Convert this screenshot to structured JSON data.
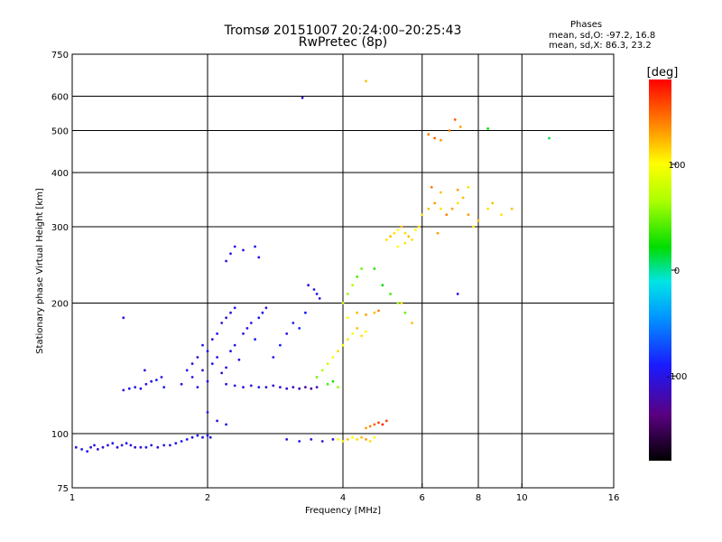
{
  "header": {
    "title": "Tromsø 20151007 20:24:00–20:25:43",
    "subtitle": "RwPretec (8p)"
  },
  "phase_info": {
    "heading": "Phases",
    "line_o": "mean, sd,O:  -97.2, 16.8",
    "line_x": "mean, sd,X:  86.3, 23.2"
  },
  "colors": {
    "axes": "#000000",
    "grid": "#000000",
    "background": "#ffffff"
  },
  "chart_data": {
    "type": "scatter",
    "xlabel": "Frequency [MHz]",
    "ylabel": "Stationary phase Virtual Height [km]",
    "xscale": "log",
    "yscale": "log",
    "xlim": [
      1,
      16
    ],
    "ylim": [
      75,
      750
    ],
    "xticks": [
      1,
      2,
      4,
      6,
      8,
      10,
      16
    ],
    "xgrid": [
      2,
      4,
      6,
      8,
      10
    ],
    "yticks": [
      75,
      100,
      200,
      300,
      400,
      500,
      600,
      750
    ],
    "ygrid": [
      100,
      200,
      300,
      400,
      500,
      600
    ],
    "grid": true,
    "colorbar": {
      "label": "[deg]",
      "range": [
        -180,
        180
      ],
      "ticks": [
        100,
        0,
        -100
      ]
    },
    "series": [
      {
        "value_kind": "phase_deg",
        "points": [
          [
            1.02,
            93,
            -100
          ],
          [
            1.05,
            92,
            -95
          ],
          [
            1.08,
            91,
            -90
          ],
          [
            1.1,
            93,
            -105
          ],
          [
            1.12,
            94,
            -95
          ],
          [
            1.14,
            92,
            -100
          ],
          [
            1.17,
            93,
            -110
          ],
          [
            1.2,
            94,
            -100
          ],
          [
            1.23,
            95,
            -95
          ],
          [
            1.26,
            93,
            -100
          ],
          [
            1.29,
            94,
            -105
          ],
          [
            1.32,
            95,
            -95
          ],
          [
            1.35,
            94,
            -100
          ],
          [
            1.38,
            93,
            -110
          ],
          [
            1.42,
            93,
            -100
          ],
          [
            1.46,
            93,
            -95
          ],
          [
            1.5,
            94,
            -100
          ],
          [
            1.55,
            93,
            -105
          ],
          [
            1.6,
            94,
            -95
          ],
          [
            1.65,
            94,
            -100
          ],
          [
            1.7,
            95,
            -100
          ],
          [
            1.75,
            96,
            -90
          ],
          [
            1.8,
            97,
            -95
          ],
          [
            1.85,
            98,
            -100
          ],
          [
            1.9,
            99,
            -95
          ],
          [
            1.95,
            98,
            -100
          ],
          [
            2.0,
            99,
            -90
          ],
          [
            2.03,
            98,
            -100
          ],
          [
            1.3,
            126,
            -100
          ],
          [
            1.34,
            127,
            -95
          ],
          [
            1.38,
            128,
            -100
          ],
          [
            1.42,
            127,
            -105
          ],
          [
            1.46,
            130,
            -95
          ],
          [
            1.5,
            132,
            -100
          ],
          [
            1.54,
            133,
            -90
          ],
          [
            1.58,
            135,
            -100
          ],
          [
            1.75,
            130,
            -100
          ],
          [
            1.8,
            140,
            -95
          ],
          [
            1.85,
            145,
            -100
          ],
          [
            1.9,
            150,
            -110
          ],
          [
            1.95,
            160,
            -100
          ],
          [
            2.0,
            155,
            -95
          ],
          [
            2.05,
            165,
            -100
          ],
          [
            2.1,
            170,
            -95
          ],
          [
            2.15,
            180,
            -100
          ],
          [
            2.2,
            185,
            -110
          ],
          [
            2.25,
            190,
            -100
          ],
          [
            2.3,
            195,
            -95
          ],
          [
            1.85,
            135,
            -100
          ],
          [
            1.9,
            128,
            -95
          ],
          [
            1.95,
            140,
            -105
          ],
          [
            2.0,
            132,
            -100
          ],
          [
            2.05,
            145,
            -95
          ],
          [
            2.1,
            150,
            -100
          ],
          [
            2.15,
            138,
            -110
          ],
          [
            2.2,
            142,
            -100
          ],
          [
            2.25,
            155,
            -95
          ],
          [
            2.3,
            160,
            -100
          ],
          [
            2.35,
            148,
            -100
          ],
          [
            2.4,
            170,
            -105
          ],
          [
            2.45,
            175,
            -95
          ],
          [
            2.5,
            180,
            -100
          ],
          [
            2.55,
            165,
            -90
          ],
          [
            2.6,
            185,
            -100
          ],
          [
            2.65,
            190,
            -95
          ],
          [
            2.7,
            195,
            -100
          ],
          [
            2.2,
            130,
            -100
          ],
          [
            2.3,
            129,
            -95
          ],
          [
            2.4,
            128,
            -100
          ],
          [
            2.5,
            129,
            -105
          ],
          [
            2.6,
            128,
            -95
          ],
          [
            2.7,
            128,
            -100
          ],
          [
            2.8,
            129,
            -110
          ],
          [
            2.9,
            128,
            -100
          ],
          [
            3.0,
            127,
            -105
          ],
          [
            3.1,
            128,
            -115
          ],
          [
            3.2,
            127,
            -120
          ],
          [
            3.3,
            128,
            -125
          ],
          [
            3.4,
            127,
            -130
          ],
          [
            3.5,
            128,
            -120
          ],
          [
            2.2,
            250,
            -100
          ],
          [
            2.25,
            260,
            -95
          ],
          [
            2.3,
            270,
            -100
          ],
          [
            2.4,
            265,
            -100
          ],
          [
            2.55,
            270,
            -95
          ],
          [
            2.6,
            255,
            -100
          ],
          [
            2.8,
            150,
            -95
          ],
          [
            2.9,
            160,
            -90
          ],
          [
            3.0,
            170,
            -100
          ],
          [
            3.1,
            180,
            -90
          ],
          [
            3.2,
            175,
            -85
          ],
          [
            3.3,
            190,
            -90
          ],
          [
            3.35,
            220,
            -100
          ],
          [
            3.45,
            215,
            -95
          ],
          [
            3.5,
            210,
            -95
          ],
          [
            3.55,
            205,
            -100
          ],
          [
            1.3,
            185,
            -100
          ],
          [
            1.45,
            140,
            -100
          ],
          [
            1.6,
            128,
            -95
          ],
          [
            3.25,
            595,
            -110
          ],
          [
            3.0,
            97,
            -100
          ],
          [
            3.2,
            96,
            -95
          ],
          [
            3.4,
            97,
            -100
          ],
          [
            3.6,
            96,
            -105
          ],
          [
            3.8,
            97,
            -100
          ],
          [
            2.1,
            107,
            -100
          ],
          [
            2.2,
            105,
            -95
          ],
          [
            2.0,
            112,
            -100
          ]
        ]
      },
      {
        "value_kind": "phase_deg",
        "points": [
          [
            3.5,
            135,
            50
          ],
          [
            3.6,
            140,
            70
          ],
          [
            3.7,
            145,
            80
          ],
          [
            3.8,
            150,
            100
          ],
          [
            3.9,
            155,
            110
          ],
          [
            4.0,
            160,
            100
          ],
          [
            4.1,
            165,
            110
          ],
          [
            4.2,
            170,
            100
          ],
          [
            4.3,
            175,
            120
          ],
          [
            4.4,
            168,
            110
          ],
          [
            4.5,
            172,
            100
          ],
          [
            3.7,
            130,
            40
          ],
          [
            3.8,
            132,
            30
          ],
          [
            3.9,
            128,
            60
          ],
          [
            4.0,
            200,
            80
          ],
          [
            4.1,
            210,
            60
          ],
          [
            4.2,
            220,
            70
          ],
          [
            4.3,
            230,
            40
          ],
          [
            4.4,
            240,
            50
          ],
          [
            4.1,
            185,
            100
          ],
          [
            4.3,
            190,
            120
          ],
          [
            4.5,
            188,
            130
          ],
          [
            4.7,
            190,
            120
          ],
          [
            4.8,
            192,
            140
          ],
          [
            3.9,
            97,
            100
          ],
          [
            4.0,
            96,
            110
          ],
          [
            4.1,
            97,
            120
          ],
          [
            4.2,
            98,
            100
          ],
          [
            4.3,
            97,
            110
          ],
          [
            4.4,
            98,
            120
          ],
          [
            4.5,
            97,
            130
          ],
          [
            4.6,
            96,
            110
          ],
          [
            4.7,
            98,
            100
          ],
          [
            4.5,
            103,
            130
          ],
          [
            4.6,
            104,
            140
          ],
          [
            4.7,
            105,
            150
          ],
          [
            4.8,
            106,
            160
          ],
          [
            4.9,
            105,
            170
          ],
          [
            5.0,
            107,
            160
          ],
          [
            5.0,
            280,
            110
          ],
          [
            5.1,
            285,
            120
          ],
          [
            5.2,
            290,
            110
          ],
          [
            5.3,
            295,
            100
          ],
          [
            5.4,
            300,
            120
          ],
          [
            5.5,
            290,
            110
          ],
          [
            5.6,
            285,
            120
          ],
          [
            5.7,
            280,
            110
          ],
          [
            5.8,
            295,
            100
          ],
          [
            5.9,
            300,
            110
          ],
          [
            5.3,
            270,
            100
          ],
          [
            5.5,
            275,
            110
          ],
          [
            4.7,
            240,
            30
          ],
          [
            4.9,
            220,
            20
          ],
          [
            5.1,
            210,
            40
          ],
          [
            5.3,
            200,
            60
          ],
          [
            5.5,
            190,
            50
          ],
          [
            6.0,
            320,
            110
          ],
          [
            6.2,
            330,
            120
          ],
          [
            6.4,
            340,
            130
          ],
          [
            6.6,
            330,
            110
          ],
          [
            6.8,
            320,
            140
          ],
          [
            7.0,
            330,
            130
          ],
          [
            7.2,
            340,
            110
          ],
          [
            7.4,
            350,
            120
          ],
          [
            7.6,
            320,
            130
          ],
          [
            7.8,
            300,
            110
          ],
          [
            8.0,
            310,
            120
          ],
          [
            6.3,
            370,
            140
          ],
          [
            6.6,
            360,
            120
          ],
          [
            7.2,
            365,
            130
          ],
          [
            7.6,
            370,
            110
          ],
          [
            6.2,
            490,
            140
          ],
          [
            6.4,
            480,
            150
          ],
          [
            6.6,
            475,
            130
          ],
          [
            6.9,
            500,
            140
          ],
          [
            7.1,
            530,
            150
          ],
          [
            7.3,
            510,
            130
          ],
          [
            4.5,
            650,
            120
          ],
          [
            5.4,
            200,
            110
          ],
          [
            5.7,
            180,
            120
          ],
          [
            6.5,
            290,
            130
          ],
          [
            7.2,
            210,
            -100
          ],
          [
            8.4,
            330,
            110
          ],
          [
            8.6,
            340,
            120
          ],
          [
            9.0,
            320,
            110
          ],
          [
            9.5,
            330,
            120
          ],
          [
            11.5,
            480,
            10
          ],
          [
            8.4,
            505,
            20
          ]
        ]
      }
    ]
  }
}
